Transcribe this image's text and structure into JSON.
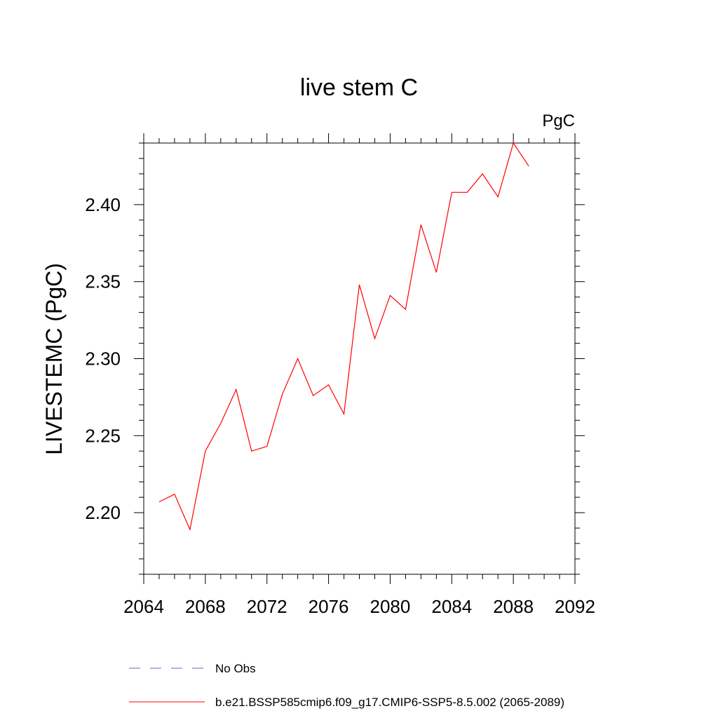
{
  "chart_data": {
    "type": "line",
    "title": "live stem C",
    "units_label": "PgC",
    "ylabel": "LIVESTEMC  (PgC)",
    "xlabel": "",
    "xlim": [
      2064,
      2092
    ],
    "ylim": [
      2.16,
      2.44
    ],
    "x_ticks": [
      2064,
      2068,
      2072,
      2076,
      2080,
      2084,
      2088,
      2092
    ],
    "y_ticks": [
      2.2,
      2.25,
      2.3,
      2.35,
      2.4
    ],
    "x_tick_labels": [
      "2064",
      "2068",
      "2072",
      "2076",
      "2080",
      "2084",
      "2088",
      "2092"
    ],
    "y_tick_labels": [
      "2.20",
      "2.25",
      "2.30",
      "2.35",
      "2.40"
    ],
    "grid": false,
    "legend_position": "bottom",
    "series": [
      {
        "name": "b.e21.BSSP585cmip6.f09_g17.CMIP6-SSP5-8.5.002 (2065-2089)",
        "color": "#ff0000",
        "style": "solid",
        "x": [
          2065,
          2066,
          2067,
          2068,
          2069,
          2070,
          2071,
          2072,
          2073,
          2074,
          2075,
          2076,
          2077,
          2078,
          2079,
          2080,
          2081,
          2082,
          2083,
          2084,
          2085,
          2086,
          2087,
          2088,
          2089
        ],
        "y": [
          2.207,
          2.212,
          2.189,
          2.24,
          2.258,
          2.28,
          2.24,
          2.243,
          2.277,
          2.3,
          2.276,
          2.283,
          2.264,
          2.348,
          2.313,
          2.341,
          2.332,
          2.387,
          2.356,
          2.408,
          2.408,
          2.42,
          2.405,
          2.44,
          2.425
        ]
      }
    ],
    "legend": [
      {
        "label": "No Obs",
        "color": "#6666cc",
        "style": "dashed"
      },
      {
        "label": "b.e21.BSSP585cmip6.f09_g17.CMIP6-SSP5-8.5.002 (2065-2089)",
        "color": "#ff0000",
        "style": "solid"
      }
    ]
  }
}
